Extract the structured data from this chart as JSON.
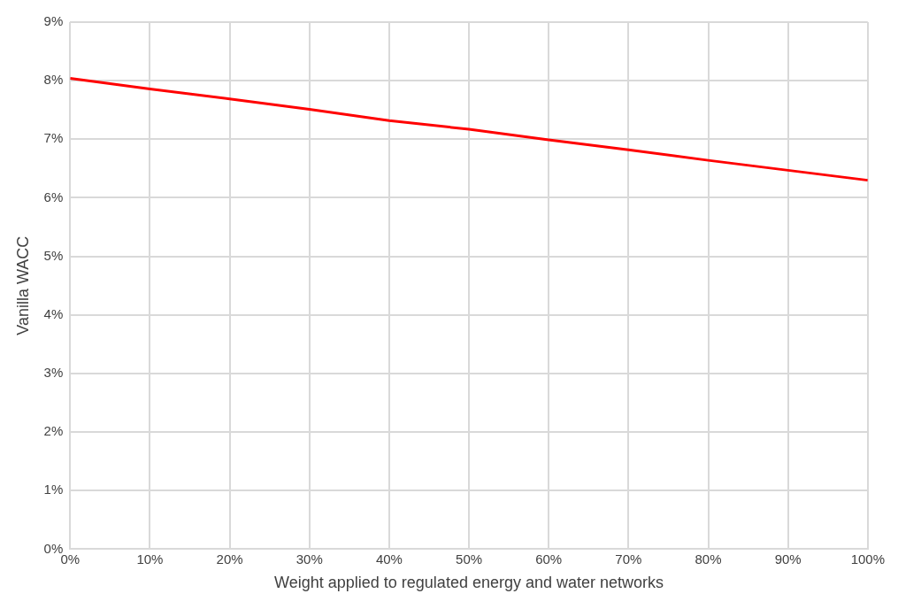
{
  "chart_data": {
    "type": "line",
    "xlabel": "Weight applied to regulated energy and water networks",
    "ylabel": "Vanilla WACC",
    "x": [
      0,
      10,
      20,
      30,
      40,
      50,
      60,
      70,
      80,
      90,
      100
    ],
    "series": [
      {
        "color": "#ff0000",
        "values": [
          8.04,
          7.86,
          7.69,
          7.51,
          7.32,
          7.17,
          6.99,
          6.82,
          6.64,
          6.47,
          6.3
        ]
      }
    ],
    "xlim": [
      0,
      100
    ],
    "xticks": [
      {
        "value": 0,
        "label": "0%"
      },
      {
        "value": 10,
        "label": "10%"
      },
      {
        "value": 20,
        "label": "20%"
      },
      {
        "value": 30,
        "label": "30%"
      },
      {
        "value": 40,
        "label": "40%"
      },
      {
        "value": 50,
        "label": "50%"
      },
      {
        "value": 60,
        "label": "60%"
      },
      {
        "value": 70,
        "label": "70%"
      },
      {
        "value": 80,
        "label": "80%"
      },
      {
        "value": 90,
        "label": "90%"
      },
      {
        "value": 100,
        "label": "100%"
      }
    ],
    "ylim": [
      0,
      9
    ],
    "yticks": [
      {
        "value": 0,
        "label": "0%"
      },
      {
        "value": 1,
        "label": "1%"
      },
      {
        "value": 2,
        "label": "2%"
      },
      {
        "value": 3,
        "label": "3%"
      },
      {
        "value": 4,
        "label": "4%"
      },
      {
        "value": 5,
        "label": "5%"
      },
      {
        "value": 6,
        "label": "6%"
      },
      {
        "value": 7,
        "label": "7%"
      },
      {
        "value": 8,
        "label": "8%"
      },
      {
        "value": 9,
        "label": "9%"
      }
    ],
    "grid": true,
    "marker": "none",
    "line_style": "solid",
    "legend": false
  }
}
